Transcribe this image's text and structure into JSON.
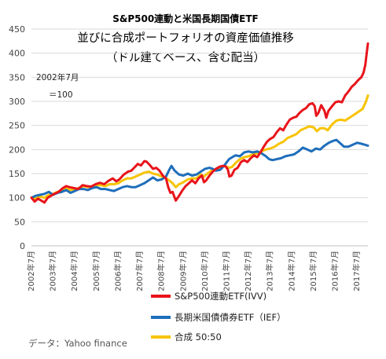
{
  "chart_data": {
    "type": "line",
    "title": "S&P500連動と米国長期国債ETF",
    "subtitle_lines": [
      "並びに合成ポートフォリオの資産価値推移",
      "（ドル建てベース、含む配当）"
    ],
    "annotation": {
      "line1": "2002年7月",
      "line2": "＝100"
    },
    "source": "データ：Yahoo finance",
    "ylim": [
      0,
      450
    ],
    "yticks": [
      0,
      50,
      100,
      150,
      200,
      250,
      300,
      350,
      400,
      450
    ],
    "xlim": [
      2002.5,
      2018.0
    ],
    "xticks": [
      {
        "x": 2002.5,
        "label": "2002年7月"
      },
      {
        "x": 2003.5,
        "label": "2003年7月"
      },
      {
        "x": 2004.5,
        "label": "2004年7月"
      },
      {
        "x": 2005.5,
        "label": "2005年7月"
      },
      {
        "x": 2006.5,
        "label": "2006年7月"
      },
      {
        "x": 2007.5,
        "label": "2007年7月"
      },
      {
        "x": 2008.5,
        "label": "2008年7月"
      },
      {
        "x": 2009.5,
        "label": "2009年7月"
      },
      {
        "x": 2010.5,
        "label": "2010年7月"
      },
      {
        "x": 2011.5,
        "label": "2011年7月"
      },
      {
        "x": 2012.5,
        "label": "2012年7月"
      },
      {
        "x": 2013.5,
        "label": "2013年7月"
      },
      {
        "x": 2014.5,
        "label": "2014年7月"
      },
      {
        "x": 2015.5,
        "label": "2015年7月"
      },
      {
        "x": 2016.5,
        "label": "2016年7月"
      },
      {
        "x": 2017.5,
        "label": "2017年7月"
      }
    ],
    "grid": true,
    "legend_position": "bottom-right",
    "series": [
      {
        "name": "S&P500連動ETF(IVV)",
        "color": "#e8141b",
        "points": [
          [
            2002.5,
            100
          ],
          [
            2002.65,
            92
          ],
          [
            2002.8,
            98
          ],
          [
            2002.95,
            94
          ],
          [
            2003.1,
            90
          ],
          [
            2003.25,
            100
          ],
          [
            2003.4,
            104
          ],
          [
            2003.55,
            108
          ],
          [
            2003.75,
            112
          ],
          [
            2003.95,
            120
          ],
          [
            2004.1,
            124
          ],
          [
            2004.25,
            122
          ],
          [
            2004.45,
            120
          ],
          [
            2004.65,
            118
          ],
          [
            2004.85,
            126
          ],
          [
            2005.05,
            124
          ],
          [
            2005.25,
            123
          ],
          [
            2005.45,
            128
          ],
          [
            2005.65,
            131
          ],
          [
            2005.85,
            128
          ],
          [
            2006.05,
            135
          ],
          [
            2006.25,
            140
          ],
          [
            2006.4,
            134
          ],
          [
            2006.55,
            138
          ],
          [
            2006.75,
            148
          ],
          [
            2006.95,
            154
          ],
          [
            2007.1,
            156
          ],
          [
            2007.25,
            163
          ],
          [
            2007.4,
            170
          ],
          [
            2007.55,
            167
          ],
          [
            2007.7,
            176
          ],
          [
            2007.8,
            175
          ],
          [
            2007.95,
            168
          ],
          [
            2008.1,
            160
          ],
          [
            2008.25,
            162
          ],
          [
            2008.4,
            156
          ],
          [
            2008.55,
            146
          ],
          [
            2008.7,
            140
          ],
          [
            2008.8,
            122
          ],
          [
            2008.9,
            110
          ],
          [
            2009.0,
            112
          ],
          [
            2009.15,
            94
          ],
          [
            2009.3,
            104
          ],
          [
            2009.45,
            115
          ],
          [
            2009.6,
            124
          ],
          [
            2009.75,
            130
          ],
          [
            2009.9,
            136
          ],
          [
            2010.05,
            130
          ],
          [
            2010.2,
            140
          ],
          [
            2010.35,
            146
          ],
          [
            2010.45,
            132
          ],
          [
            2010.55,
            136
          ],
          [
            2010.7,
            146
          ],
          [
            2010.85,
            154
          ],
          [
            2011.0,
            160
          ],
          [
            2011.15,
            164
          ],
          [
            2011.3,
            166
          ],
          [
            2011.45,
            165
          ],
          [
            2011.55,
            158
          ],
          [
            2011.62,
            144
          ],
          [
            2011.72,
            146
          ],
          [
            2011.85,
            158
          ],
          [
            2012.0,
            162
          ],
          [
            2012.15,
            174
          ],
          [
            2012.3,
            178
          ],
          [
            2012.45,
            174
          ],
          [
            2012.6,
            182
          ],
          [
            2012.75,
            188
          ],
          [
            2012.9,
            184
          ],
          [
            2013.05,
            194
          ],
          [
            2013.2,
            206
          ],
          [
            2013.35,
            216
          ],
          [
            2013.5,
            222
          ],
          [
            2013.65,
            226
          ],
          [
            2013.8,
            236
          ],
          [
            2013.95,
            244
          ],
          [
            2014.1,
            240
          ],
          [
            2014.25,
            252
          ],
          [
            2014.4,
            262
          ],
          [
            2014.55,
            266
          ],
          [
            2014.7,
            268
          ],
          [
            2014.85,
            276
          ],
          [
            2015.0,
            282
          ],
          [
            2015.15,
            286
          ],
          [
            2015.3,
            294
          ],
          [
            2015.45,
            296
          ],
          [
            2015.55,
            290
          ],
          [
            2015.62,
            270
          ],
          [
            2015.72,
            276
          ],
          [
            2015.85,
            292
          ],
          [
            2016.0,
            280
          ],
          [
            2016.08,
            266
          ],
          [
            2016.18,
            280
          ],
          [
            2016.35,
            290
          ],
          [
            2016.5,
            298
          ],
          [
            2016.65,
            300
          ],
          [
            2016.8,
            298
          ],
          [
            2016.95,
            312
          ],
          [
            2017.1,
            320
          ],
          [
            2017.25,
            330
          ],
          [
            2017.4,
            336
          ],
          [
            2017.55,
            344
          ],
          [
            2017.7,
            350
          ],
          [
            2017.8,
            360
          ],
          [
            2017.88,
            376
          ],
          [
            2017.95,
            402
          ],
          [
            2018.0,
            420
          ]
        ]
      },
      {
        "name": "長期米国債債券ETF（IEF）",
        "color": "#1f6ebb",
        "points": [
          [
            2002.5,
            100
          ],
          [
            2002.7,
            104
          ],
          [
            2002.9,
            106
          ],
          [
            2003.1,
            108
          ],
          [
            2003.3,
            112
          ],
          [
            2003.5,
            106
          ],
          [
            2003.7,
            110
          ],
          [
            2003.9,
            112
          ],
          [
            2004.1,
            116
          ],
          [
            2004.3,
            110
          ],
          [
            2004.5,
            114
          ],
          [
            2004.7,
            118
          ],
          [
            2004.9,
            118
          ],
          [
            2005.1,
            116
          ],
          [
            2005.3,
            120
          ],
          [
            2005.5,
            122
          ],
          [
            2005.7,
            118
          ],
          [
            2005.9,
            118
          ],
          [
            2006.1,
            116
          ],
          [
            2006.3,
            114
          ],
          [
            2006.5,
            118
          ],
          [
            2006.7,
            122
          ],
          [
            2006.9,
            124
          ],
          [
            2007.1,
            122
          ],
          [
            2007.3,
            122
          ],
          [
            2007.5,
            126
          ],
          [
            2007.7,
            130
          ],
          [
            2007.9,
            136
          ],
          [
            2008.1,
            142
          ],
          [
            2008.3,
            136
          ],
          [
            2008.5,
            138
          ],
          [
            2008.7,
            144
          ],
          [
            2008.85,
            158
          ],
          [
            2008.95,
            166
          ],
          [
            2009.1,
            156
          ],
          [
            2009.3,
            148
          ],
          [
            2009.5,
            146
          ],
          [
            2009.7,
            150
          ],
          [
            2009.9,
            146
          ],
          [
            2010.1,
            148
          ],
          [
            2010.3,
            154
          ],
          [
            2010.5,
            160
          ],
          [
            2010.7,
            162
          ],
          [
            2010.85,
            160
          ],
          [
            2011.0,
            156
          ],
          [
            2011.2,
            158
          ],
          [
            2011.4,
            168
          ],
          [
            2011.6,
            180
          ],
          [
            2011.75,
            184
          ],
          [
            2011.9,
            188
          ],
          [
            2012.1,
            186
          ],
          [
            2012.3,
            194
          ],
          [
            2012.5,
            196
          ],
          [
            2012.7,
            194
          ],
          [
            2012.9,
            196
          ],
          [
            2013.1,
            192
          ],
          [
            2013.3,
            186
          ],
          [
            2013.45,
            180
          ],
          [
            2013.6,
            178
          ],
          [
            2013.8,
            180
          ],
          [
            2014.0,
            182
          ],
          [
            2014.2,
            186
          ],
          [
            2014.4,
            188
          ],
          [
            2014.6,
            190
          ],
          [
            2014.8,
            196
          ],
          [
            2015.0,
            204
          ],
          [
            2015.2,
            200
          ],
          [
            2015.4,
            196
          ],
          [
            2015.6,
            202
          ],
          [
            2015.8,
            200
          ],
          [
            2016.0,
            208
          ],
          [
            2016.2,
            214
          ],
          [
            2016.4,
            218
          ],
          [
            2016.55,
            220
          ],
          [
            2016.75,
            212
          ],
          [
            2016.9,
            206
          ],
          [
            2017.1,
            206
          ],
          [
            2017.3,
            210
          ],
          [
            2017.5,
            214
          ],
          [
            2017.7,
            212
          ],
          [
            2017.85,
            210
          ],
          [
            2018.0,
            208
          ]
        ]
      },
      {
        "name": "合成 50:50",
        "color": "#f7c300",
        "points": [
          [
            2002.5,
            100
          ],
          [
            2002.7,
            98
          ],
          [
            2002.9,
            102
          ],
          [
            2003.1,
            100
          ],
          [
            2003.3,
            106
          ],
          [
            2003.5,
            108
          ],
          [
            2003.7,
            112
          ],
          [
            2003.9,
            116
          ],
          [
            2004.1,
            120
          ],
          [
            2004.3,
            116
          ],
          [
            2004.5,
            118
          ],
          [
            2004.7,
            120
          ],
          [
            2004.9,
            124
          ],
          [
            2005.1,
            122
          ],
          [
            2005.3,
            124
          ],
          [
            2005.5,
            126
          ],
          [
            2005.7,
            126
          ],
          [
            2005.9,
            124
          ],
          [
            2006.1,
            128
          ],
          [
            2006.3,
            128
          ],
          [
            2006.5,
            130
          ],
          [
            2006.7,
            136
          ],
          [
            2006.9,
            140
          ],
          [
            2007.1,
            140
          ],
          [
            2007.3,
            144
          ],
          [
            2007.5,
            148
          ],
          [
            2007.7,
            152
          ],
          [
            2007.9,
            154
          ],
          [
            2008.1,
            150
          ],
          [
            2008.3,
            148
          ],
          [
            2008.5,
            144
          ],
          [
            2008.7,
            140
          ],
          [
            2008.85,
            136
          ],
          [
            2009.0,
            130
          ],
          [
            2009.15,
            122
          ],
          [
            2009.3,
            128
          ],
          [
            2009.5,
            132
          ],
          [
            2009.7,
            138
          ],
          [
            2009.9,
            140
          ],
          [
            2010.1,
            140
          ],
          [
            2010.3,
            148
          ],
          [
            2010.45,
            144
          ],
          [
            2010.6,
            150
          ],
          [
            2010.8,
            156
          ],
          [
            2011.0,
            158
          ],
          [
            2011.2,
            162
          ],
          [
            2011.4,
            166
          ],
          [
            2011.6,
            162
          ],
          [
            2011.75,
            164
          ],
          [
            2011.9,
            172
          ],
          [
            2012.1,
            180
          ],
          [
            2012.3,
            184
          ],
          [
            2012.5,
            186
          ],
          [
            2012.7,
            190
          ],
          [
            2012.9,
            192
          ],
          [
            2013.1,
            196
          ],
          [
            2013.3,
            200
          ],
          [
            2013.5,
            202
          ],
          [
            2013.7,
            206
          ],
          [
            2013.9,
            212
          ],
          [
            2014.1,
            216
          ],
          [
            2014.3,
            224
          ],
          [
            2014.5,
            228
          ],
          [
            2014.7,
            232
          ],
          [
            2014.9,
            240
          ],
          [
            2015.1,
            244
          ],
          [
            2015.3,
            248
          ],
          [
            2015.5,
            246
          ],
          [
            2015.65,
            238
          ],
          [
            2015.8,
            244
          ],
          [
            2016.0,
            244
          ],
          [
            2016.15,
            240
          ],
          [
            2016.35,
            252
          ],
          [
            2016.55,
            260
          ],
          [
            2016.75,
            262
          ],
          [
            2016.95,
            260
          ],
          [
            2017.15,
            266
          ],
          [
            2017.35,
            272
          ],
          [
            2017.55,
            278
          ],
          [
            2017.75,
            284
          ],
          [
            2017.9,
            298
          ],
          [
            2018.0,
            312
          ]
        ]
      }
    ]
  }
}
